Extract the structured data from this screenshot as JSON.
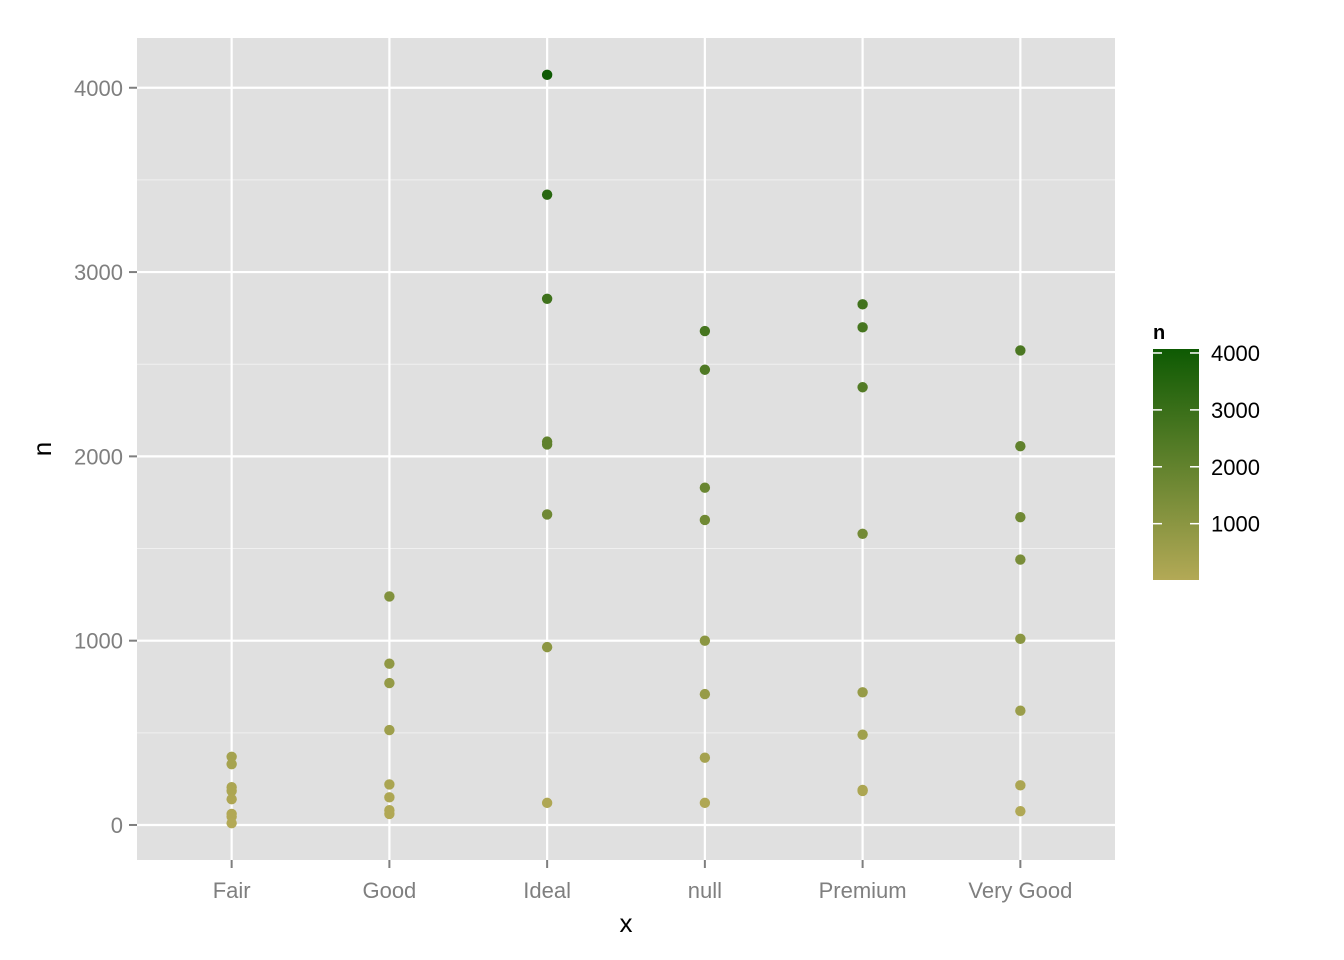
{
  "chart_data": {
    "type": "scatter",
    "title": "",
    "xlabel": "x",
    "ylabel": "n",
    "ylim": [
      -190,
      4270
    ],
    "y_ticks": [
      0,
      1000,
      2000,
      3000,
      4000
    ],
    "y_tick_labels": [
      "0",
      "1000",
      "2000",
      "3000",
      "4000"
    ],
    "categories": [
      "Fair",
      "Good",
      "Ideal",
      "null",
      "Premium",
      "Very Good"
    ],
    "points": [
      {
        "x": "Fair",
        "y": 370
      },
      {
        "x": "Fair",
        "y": 330
      },
      {
        "x": "Fair",
        "y": 205
      },
      {
        "x": "Fair",
        "y": 185
      },
      {
        "x": "Fair",
        "y": 140
      },
      {
        "x": "Fair",
        "y": 60
      },
      {
        "x": "Fair",
        "y": 45
      },
      {
        "x": "Fair",
        "y": 10
      },
      {
        "x": "Good",
        "y": 1240
      },
      {
        "x": "Good",
        "y": 875
      },
      {
        "x": "Good",
        "y": 770
      },
      {
        "x": "Good",
        "y": 515
      },
      {
        "x": "Good",
        "y": 220
      },
      {
        "x": "Good",
        "y": 150
      },
      {
        "x": "Good",
        "y": 80
      },
      {
        "x": "Good",
        "y": 60
      },
      {
        "x": "Ideal",
        "y": 4070
      },
      {
        "x": "Ideal",
        "y": 3420
      },
      {
        "x": "Ideal",
        "y": 2855
      },
      {
        "x": "Ideal",
        "y": 2080
      },
      {
        "x": "Ideal",
        "y": 2065
      },
      {
        "x": "Ideal",
        "y": 1685
      },
      {
        "x": "Ideal",
        "y": 965
      },
      {
        "x": "Ideal",
        "y": 120
      },
      {
        "x": "null",
        "y": 2680
      },
      {
        "x": "null",
        "y": 2470
      },
      {
        "x": "null",
        "y": 1830
      },
      {
        "x": "null",
        "y": 1655
      },
      {
        "x": "null",
        "y": 1000
      },
      {
        "x": "null",
        "y": 710
      },
      {
        "x": "null",
        "y": 365
      },
      {
        "x": "null",
        "y": 120
      },
      {
        "x": "Premium",
        "y": 2825
      },
      {
        "x": "Premium",
        "y": 2700
      },
      {
        "x": "Premium",
        "y": 2375
      },
      {
        "x": "Premium",
        "y": 1580
      },
      {
        "x": "Premium",
        "y": 720
      },
      {
        "x": "Premium",
        "y": 490
      },
      {
        "x": "Premium",
        "y": 190
      },
      {
        "x": "Premium",
        "y": 185
      },
      {
        "x": "Very Good",
        "y": 2575
      },
      {
        "x": "Very Good",
        "y": 2055
      },
      {
        "x": "Very Good",
        "y": 1670
      },
      {
        "x": "Very Good",
        "y": 1440
      },
      {
        "x": "Very Good",
        "y": 1010
      },
      {
        "x": "Very Good",
        "y": 620
      },
      {
        "x": "Very Good",
        "y": 215
      },
      {
        "x": "Very Good",
        "y": 75
      }
    ],
    "color_scale": {
      "title": "n",
      "low_color": "#b3a956",
      "high_color": "#0e5a03",
      "range": [
        10,
        4070
      ],
      "breaks": [
        1000,
        2000,
        3000,
        4000
      ],
      "break_labels": [
        "1000",
        "2000",
        "3000",
        "4000"
      ]
    },
    "panel_background": "#e0e0e0",
    "grid_color": "#ffffff",
    "grid": true
  }
}
